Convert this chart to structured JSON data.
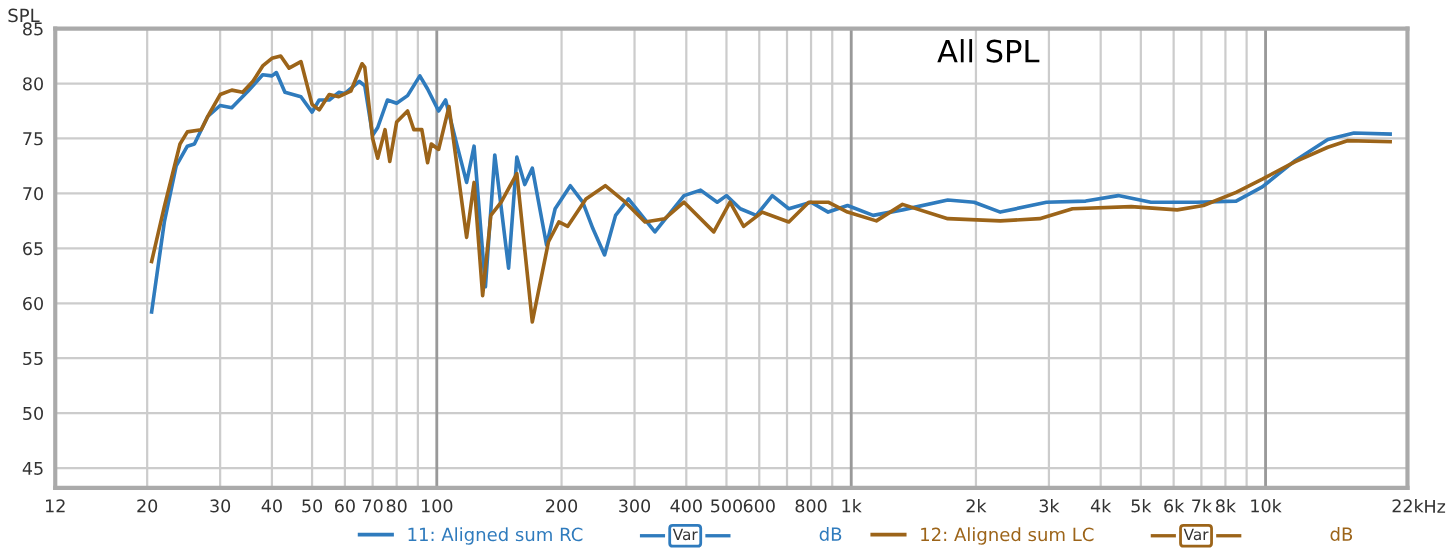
{
  "chart_data": {
    "type": "line",
    "title": "All SPL",
    "ylabel": "SPL",
    "log": "x",
    "grid": true,
    "legend": "bottom",
    "marker": "none",
    "line_style": "solid",
    "xlim": [
      12,
      22000
    ],
    "ylim": [
      43.2,
      85
    ],
    "xticks": [
      12,
      20,
      30,
      40,
      50,
      60,
      70,
      80,
      {
        "value": 90,
        "label": null
      },
      100,
      200,
      300,
      400,
      500,
      600,
      {
        "value": 700,
        "label": null
      },
      800,
      {
        "value": 900,
        "label": null
      },
      {
        "value": 1000,
        "label": "1k"
      },
      {
        "value": 2000,
        "label": "2k"
      },
      {
        "value": 3000,
        "label": "3k"
      },
      {
        "value": 4000,
        "label": "4k"
      },
      {
        "value": 5000,
        "label": "5k"
      },
      {
        "value": 6000,
        "label": "6k"
      },
      {
        "value": 7000,
        "label": "7k"
      },
      {
        "value": 8000,
        "label": "8k"
      },
      {
        "value": 9000,
        "label": null
      },
      {
        "value": 10000,
        "label": "10k"
      },
      {
        "value": 22000,
        "label": "22k"
      }
    ],
    "xlabel": "Hz",
    "yticks": [
      45,
      50,
      55,
      60,
      65,
      70,
      75,
      80,
      85
    ],
    "annotations": [
      "Var",
      "dB",
      "Var",
      "dB"
    ],
    "series": [
      {
        "name": "11: Aligned sum RC",
        "color": "#2f7bbd",
        "x": [
          20.5,
          22,
          23.5,
          25,
          26,
          28,
          30,
          32,
          35,
          38,
          40,
          41,
          43,
          47,
          50,
          52,
          55,
          58,
          60,
          65,
          67,
          70,
          72,
          76,
          80,
          85,
          91,
          95,
          101,
          105,
          112,
          118,
          123,
          131,
          138,
          149,
          156,
          163,
          170,
          184,
          193,
          210,
          225,
          238,
          254,
          270,
          290,
          336,
          395,
          433,
          475,
          500,
          540,
          590,
          645,
          707,
          800,
          880,
          980,
          1130,
          1330,
          1710,
          1980,
          2290,
          2960,
          3680,
          4410,
          5290,
          6820,
          8490,
          9820,
          11800,
          14130,
          16340,
          19980
        ],
        "values": [
          59.2,
          67.4,
          72.5,
          74.3,
          74.5,
          77,
          78,
          77.8,
          79.3,
          80.8,
          80.7,
          81,
          79.2,
          78.8,
          77.4,
          78.5,
          78.5,
          79.2,
          79.1,
          80.2,
          79.8,
          75.3,
          76,
          78.5,
          78.2,
          78.9,
          80.7,
          79.5,
          77.5,
          78.5,
          74.3,
          71,
          74.3,
          61.5,
          73.5,
          63.2,
          73.3,
          70.8,
          72.3,
          65.3,
          68.6,
          70.7,
          69.2,
          66.8,
          64.4,
          68,
          69.5,
          66.5,
          69.8,
          70.3,
          69.2,
          69.8,
          68.6,
          68,
          69.8,
          68.6,
          69.2,
          68.3,
          68.9,
          68,
          68.5,
          69.4,
          69.2,
          68.3,
          69.2,
          69.3,
          69.8,
          69.2,
          69.2,
          69.3,
          70.6,
          73,
          74.9,
          75.5,
          75.4
        ]
      },
      {
        "name": "12: Aligned sum LC",
        "color": "#9c6419",
        "x": [
          20.5,
          22,
          24,
          25,
          27,
          28,
          30,
          32,
          34,
          36,
          38,
          40,
          42,
          44,
          47,
          50,
          52,
          55,
          58,
          62,
          66,
          67,
          70,
          72,
          75,
          77,
          80,
          85,
          88,
          92,
          95,
          97,
          101,
          107,
          118,
          123,
          129,
          135,
          143,
          156,
          170,
          186,
          197,
          207,
          229,
          255,
          285,
          318,
          355,
          395,
          466,
          510,
          550,
          610,
          707,
          790,
          880,
          980,
          1150,
          1330,
          1710,
          2290,
          2850,
          3420,
          4740,
          6120,
          7080,
          8490,
          9820,
          11800,
          14130,
          15750,
          19980
        ],
        "values": [
          63.8,
          68.8,
          74.5,
          75.6,
          75.8,
          77,
          79,
          79.4,
          79.2,
          80.2,
          81.6,
          82.3,
          82.5,
          81.4,
          82,
          78.1,
          77.6,
          79,
          78.8,
          79.3,
          81.8,
          81.5,
          75,
          73.2,
          75.8,
          72.9,
          76.5,
          77.5,
          75.8,
          75.8,
          72.8,
          74.5,
          74,
          77.9,
          66,
          71,
          60.7,
          68,
          69.2,
          71.8,
          58.3,
          65.6,
          67.4,
          67,
          69.5,
          70.7,
          69.2,
          67.4,
          67.7,
          69.2,
          66.5,
          69.2,
          67,
          68.3,
          67.4,
          69.2,
          69.2,
          68.3,
          67.5,
          69,
          67.7,
          67.5,
          67.7,
          68.6,
          68.8,
          68.5,
          68.9,
          70.1,
          71.3,
          72.9,
          74.2,
          74.8,
          74.7
        ]
      }
    ]
  }
}
